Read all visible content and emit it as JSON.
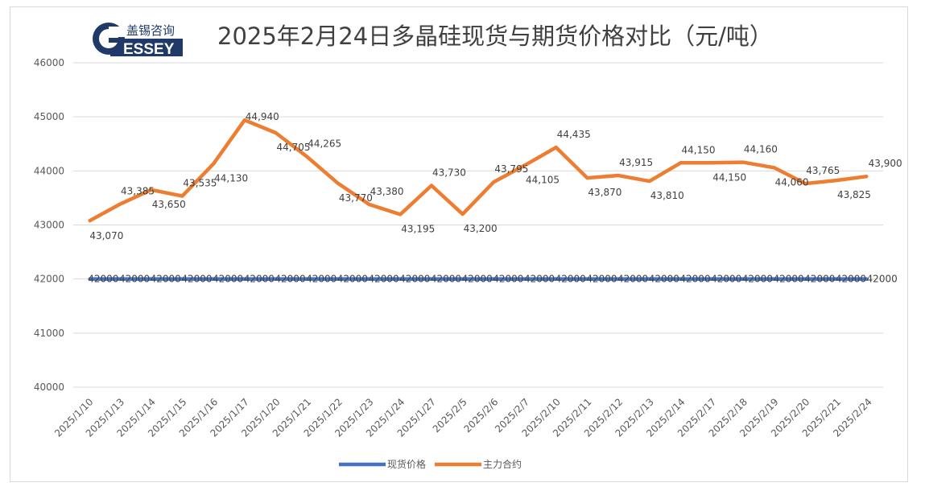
{
  "logo": {
    "cn": "盖锡咨询",
    "en": "GESSEY"
  },
  "chart_data": {
    "type": "line",
    "title": "2025年2月24日多晶硅现货与期货价格对比（元/吨）",
    "xlabel": "",
    "ylabel": "",
    "ylim": [
      40000,
      46000
    ],
    "yticks": [
      "40000",
      "41000",
      "42000",
      "43000",
      "44000",
      "45000",
      "46000"
    ],
    "grid": true,
    "legend_position": "bottom",
    "categories": [
      "2025/1/10",
      "2025/1/13",
      "2025/1/14",
      "2025/1/15",
      "2025/1/16",
      "2025/1/17",
      "2025/1/20",
      "2025/1/21",
      "2025/1/22",
      "2025/1/23",
      "2025/1/24",
      "2025/1/27",
      "2025/2/5",
      "2025/2/6",
      "2025/2/7",
      "2025/2/10",
      "2025/2/11",
      "2025/2/12",
      "2025/2/13",
      "2025/2/14",
      "2025/2/17",
      "2025/2/18",
      "2025/2/19",
      "2025/2/20",
      "2025/2/21",
      "2025/2/24"
    ],
    "series": [
      {
        "name": "现货价格",
        "color": "#4472c4",
        "values": [
          42000,
          42000,
          42000,
          42000,
          42000,
          42000,
          42000,
          42000,
          42000,
          42000,
          42000,
          42000,
          42000,
          42000,
          42000,
          42000,
          42000,
          42000,
          42000,
          42000,
          42000,
          42000,
          42000,
          42000,
          42000,
          42000
        ],
        "labels": [
          "42000",
          "42000",
          "42000",
          "42000",
          "42000",
          "42000",
          "42000",
          "42000",
          "42000",
          "42000",
          "42000",
          "42000",
          "42000",
          "42000",
          "42000",
          "42000",
          "42000",
          "42000",
          "42000",
          "42000",
          "42000",
          "42000",
          "42000",
          "42000",
          "42000",
          "42000"
        ]
      },
      {
        "name": "主力合约",
        "color": "#ed7d31",
        "values": [
          43070,
          43385,
          43650,
          43535,
          44130,
          44940,
          44705,
          44265,
          43770,
          43380,
          43195,
          43730,
          43200,
          43795,
          44105,
          44435,
          43870,
          43915,
          43810,
          44150,
          44150,
          44160,
          44060,
          43765,
          43825,
          43900
        ],
        "labels": [
          "43,070",
          "43,385",
          "43,650",
          "43,535",
          "44,130",
          "44,940",
          "44,705",
          "44,265",
          "43,770",
          "43,380",
          "43,195",
          "43,730",
          "43,200",
          "43,795",
          "44,105",
          "44,435",
          "43,870",
          "43,915",
          "43,810",
          "44,150",
          "44,150",
          "44,160",
          "44,060",
          "43,765",
          "43,825",
          "43,900"
        ]
      }
    ]
  }
}
